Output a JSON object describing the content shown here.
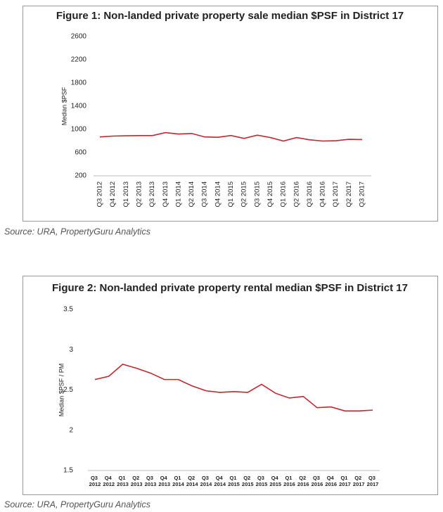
{
  "chart_data": [
    {
      "type": "line",
      "title": "Figure 1: Non-landed private property sale median $PSF in District 17",
      "y_label": "Median $PSF",
      "source": "Source: URA, PropertyGuru Analytics",
      "categories": [
        "Q3 2012",
        "Q4 2012",
        "Q1 2013",
        "Q2 2013",
        "Q3 2013",
        "Q4 2013",
        "Q1 2014",
        "Q2 2014",
        "Q3 2014",
        "Q4 2014",
        "Q1 2015",
        "Q2 2015",
        "Q3 2015",
        "Q4 2015",
        "Q1 2016",
        "Q2 2016",
        "Q3 2016",
        "Q4 2016",
        "Q1 2017",
        "Q2 2017",
        "Q3 2017"
      ],
      "series": [
        {
          "name": "Median $PSF",
          "color": "#c1272d",
          "values": [
            870,
            885,
            890,
            893,
            893,
            945,
            920,
            930,
            870,
            865,
            895,
            845,
            900,
            860,
            800,
            860,
            820,
            800,
            805,
            830,
            825
          ]
        }
      ],
      "ylim": [
        200,
        2600
      ],
      "yticks": [
        200,
        600,
        1000,
        1400,
        1800,
        2200,
        2600
      ],
      "grid": false
    },
    {
      "type": "line",
      "title": "Figure 2: Non-landed private property rental median $PSF in District 17",
      "y_label": "Median $PSF / PM",
      "source": "Source: URA, PropertyGuru Analytics",
      "categories": [
        "Q3 2012",
        "Q4 2012",
        "Q1 2013",
        "Q2 2013",
        "Q3 2013",
        "Q4 2013",
        "Q1 2014",
        "Q2 2014",
        "Q3 2014",
        "Q4 2014",
        "Q1 2015",
        "Q2 2015",
        "Q3 2015",
        "Q4 2015",
        "Q1 2016",
        "Q2 2016",
        "Q3 2016",
        "Q4 2016",
        "Q1 2017",
        "Q2 2017",
        "Q3 2017"
      ],
      "series": [
        {
          "name": "Median $PSF / PM",
          "color": "#c1272d",
          "values": [
            2.63,
            2.67,
            2.82,
            2.77,
            2.71,
            2.63,
            2.63,
            2.55,
            2.49,
            2.47,
            2.48,
            2.47,
            2.57,
            2.46,
            2.4,
            2.42,
            2.28,
            2.29,
            2.24,
            2.24,
            2.25
          ]
        }
      ],
      "ylim": [
        1.5,
        3.5
      ],
      "yticks": [
        1.5,
        2,
        2.5,
        3,
        3.5
      ],
      "grid": false
    }
  ]
}
